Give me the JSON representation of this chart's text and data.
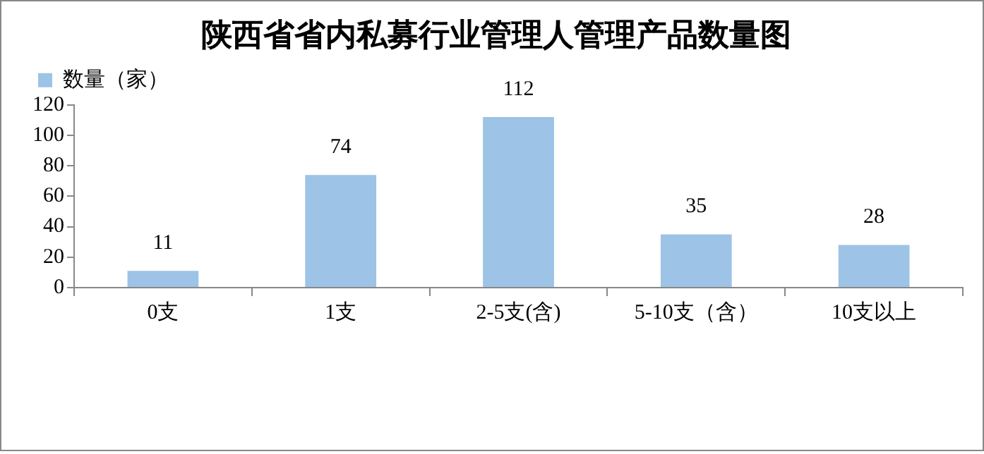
{
  "chart_data": {
    "type": "bar",
    "title": "陕西省省内私募行业管理人管理产品数量图",
    "categories": [
      "0支",
      "1支",
      "2-5支(含)",
      "5-10支（含）",
      "10支以上"
    ],
    "series": [
      {
        "name": "数量（家）",
        "color": "#9dc3e6",
        "values": [
          11,
          74,
          112,
          35,
          28
        ]
      }
    ],
    "ylim": [
      0,
      120
    ],
    "yticks": [
      0,
      20,
      40,
      60,
      80,
      100,
      120
    ],
    "grid": false,
    "legend": "top left",
    "data_labels": true
  }
}
